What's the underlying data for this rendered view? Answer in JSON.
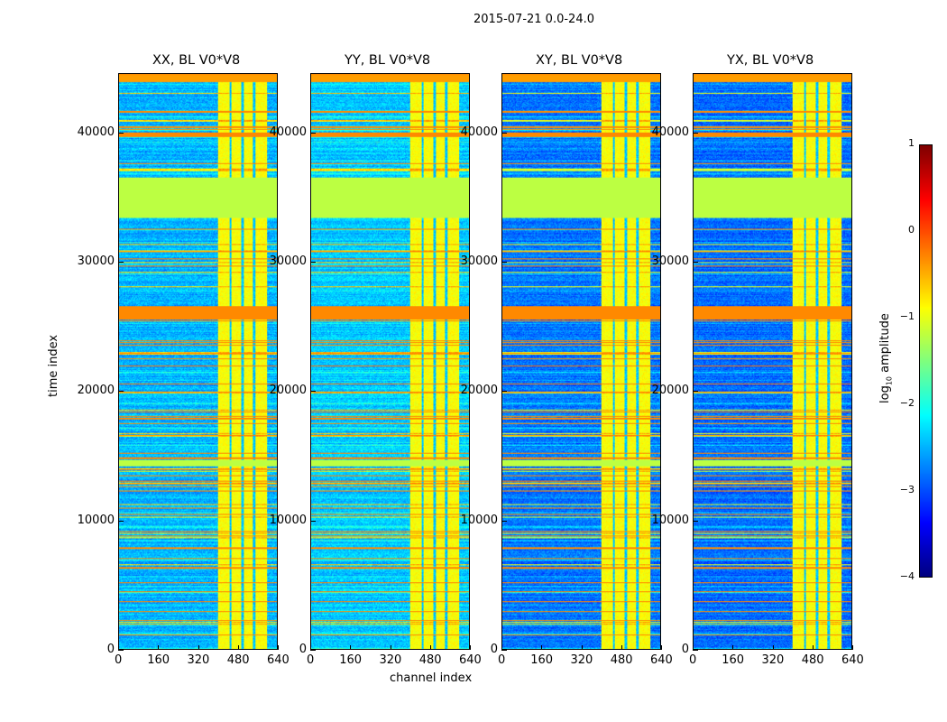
{
  "chart_data": {
    "type": "heatmap",
    "title": "2015-07-21 0.0-24.0",
    "xlabel": "channel index",
    "ylabel": "time index",
    "xlim": [
      0,
      640
    ],
    "ylim": [
      0,
      44600
    ],
    "xticks": [
      "0",
      "160",
      "320",
      "480",
      "640"
    ],
    "xtick_values": [
      0,
      160,
      320,
      480,
      640
    ],
    "yticks": [
      "0",
      "10000",
      "20000",
      "30000",
      "40000"
    ],
    "ytick_values": [
      0,
      10000,
      20000,
      30000,
      40000
    ],
    "panels": [
      {
        "title": "XX, BL V0*V8",
        "base": -2.5
      },
      {
        "title": "YY, BL V0*V8",
        "base": -2.4
      },
      {
        "title": "XY, BL V0*V8",
        "base": -2.8
      },
      {
        "title": "YX, BL V0*V8",
        "base": -2.85
      }
    ],
    "time_bands": [
      {
        "range": [
          33500,
          36600
        ],
        "value": -1.2
      },
      {
        "range": [
          25600,
          26600
        ],
        "value": -0.3
      },
      {
        "range": [
          39800,
          40100
        ],
        "value": -0.3
      },
      {
        "range": [
          14200,
          14700
        ],
        "value": -1.2
      },
      {
        "range": [
          44000,
          44600
        ],
        "value": -0.4
      }
    ],
    "channel_band": {
      "range": [
        400,
        600
      ],
      "value": -0.9,
      "gaps": [
        450,
        500,
        545
      ]
    },
    "colorbar": {
      "label": "log10 amplitude",
      "ticks": [
        "1",
        "0",
        "−1",
        "−2",
        "−3",
        "−4"
      ],
      "tick_values": [
        1,
        0,
        -1,
        -2,
        -3,
        -4
      ],
      "range": [
        -4,
        1
      ],
      "colormap": "jet"
    }
  }
}
